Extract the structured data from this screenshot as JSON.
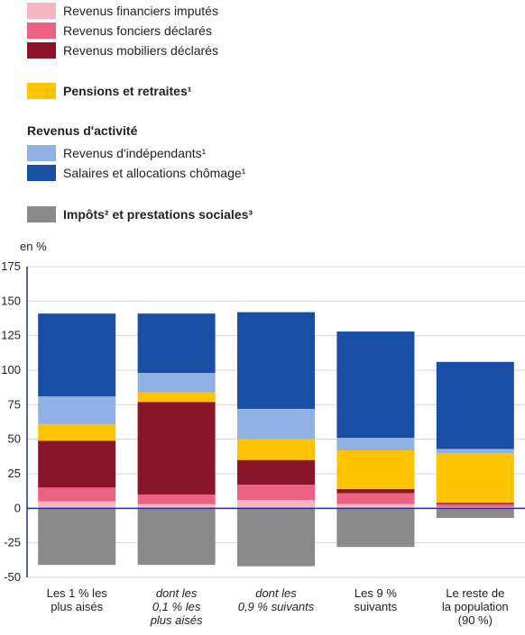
{
  "legend": {
    "revenus_financiers_imputes": "Revenus financiers imputés",
    "revenus_fonciers_declares": "Revenus fonciers déclarés",
    "revenus_mobiliers_declares": "Revenus mobiliers déclarés",
    "pensions_retraites": "Pensions et retraites¹",
    "revenus_activite_heading": "Revenus d'activité",
    "revenus_independants": "Revenus d'indépendants¹",
    "salaires_chomage": "Salaires et allocations chômage¹",
    "impots_prestations": "Impôts² et prestations sociales³"
  },
  "colors": {
    "revenus_financiers_imputes": "#f4b6c2",
    "revenus_fonciers_declares": "#ec6282",
    "revenus_mobiliers_declares": "#8a1528",
    "pensions_retraites": "#ffc400",
    "revenus_independants": "#8fb1e3",
    "salaires_chomage": "#184fa4",
    "impots_prestations": "#8a8a8a"
  },
  "chart_data": {
    "type": "bar",
    "stacked": true,
    "ylabel": "en %",
    "ylim": [
      -50,
      175
    ],
    "yticks": [
      "175",
      "150",
      "125",
      "100",
      "75",
      "50",
      "25",
      "0",
      "-25",
      "-50"
    ],
    "ytick_values": [
      175,
      150,
      125,
      100,
      75,
      50,
      25,
      0,
      -25,
      -50
    ],
    "grid": true,
    "categories": [
      {
        "lines": [
          "Les 1 % les",
          "plus aisés"
        ],
        "italic": false
      },
      {
        "lines": [
          "dont les",
          "0,1 % les",
          "plus aisés"
        ],
        "italic": true
      },
      {
        "lines": [
          "dont les",
          "0,9 % suivants"
        ],
        "italic": true
      },
      {
        "lines": [
          "Les 9 %",
          "suivants"
        ],
        "italic": false
      },
      {
        "lines": [
          "Le reste de",
          "la population",
          "(90 %)"
        ],
        "italic": false
      }
    ],
    "series": [
      {
        "key": "revenus_financiers_imputes",
        "values": [
          5,
          3,
          6,
          3,
          1
        ]
      },
      {
        "key": "revenus_fonciers_declares",
        "values": [
          10,
          7,
          11,
          8,
          2
        ]
      },
      {
        "key": "revenus_mobiliers_declares",
        "values": [
          34,
          67,
          18,
          3,
          1
        ]
      },
      {
        "key": "pensions_retraites",
        "values": [
          12,
          7,
          15,
          28,
          36
        ]
      },
      {
        "key": "revenus_independants",
        "values": [
          20,
          14,
          22,
          9,
          3
        ]
      },
      {
        "key": "salaires_chomage",
        "values": [
          60,
          43,
          70,
          77,
          63
        ]
      },
      {
        "key": "impots_prestations",
        "values": [
          -41,
          -41,
          -42,
          -28,
          -7
        ]
      }
    ]
  }
}
